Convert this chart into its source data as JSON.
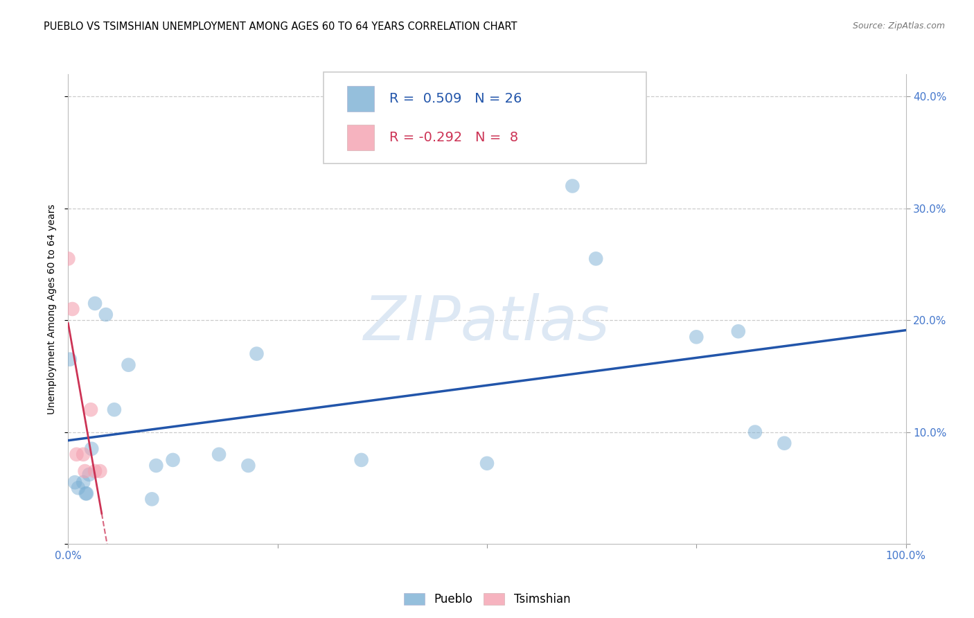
{
  "title": "PUEBLO VS TSIMSHIAN UNEMPLOYMENT AMONG AGES 60 TO 64 YEARS CORRELATION CHART",
  "source": "Source: ZipAtlas.com",
  "ylabel_label": "Unemployment Among Ages 60 to 64 years",
  "xlim": [
    0.0,
    1.0
  ],
  "ylim": [
    0.0,
    0.42
  ],
  "xticks": [
    0.0,
    0.25,
    0.5,
    0.75,
    1.0
  ],
  "xtick_labels": [
    "0.0%",
    "",
    "",
    "",
    "100.0%"
  ],
  "yticks": [
    0.0,
    0.1,
    0.2,
    0.3,
    0.4
  ],
  "ytick_labels": [
    "",
    "10.0%",
    "20.0%",
    "30.0%",
    "40.0%"
  ],
  "pueblo_R": "0.509",
  "pueblo_N": "26",
  "tsimshian_R": "-0.292",
  "tsimshian_N": "8",
  "pueblo_scatter_color": "#7bafd4",
  "tsimshian_scatter_color": "#f4a0b0",
  "pueblo_line_color": "#2255aa",
  "tsimshian_line_color": "#cc3355",
  "tick_color": "#4477cc",
  "background_color": "#ffffff",
  "grid_color": "#cccccc",
  "pueblo_x": [
    0.002,
    0.008,
    0.012,
    0.018,
    0.021,
    0.022,
    0.025,
    0.028,
    0.032,
    0.045,
    0.055,
    0.072,
    0.1,
    0.105,
    0.125,
    0.18,
    0.215,
    0.225,
    0.35,
    0.5,
    0.602,
    0.63,
    0.75,
    0.8,
    0.82,
    0.855
  ],
  "pueblo_y": [
    0.165,
    0.055,
    0.05,
    0.055,
    0.045,
    0.045,
    0.062,
    0.085,
    0.215,
    0.205,
    0.12,
    0.16,
    0.04,
    0.07,
    0.075,
    0.08,
    0.07,
    0.17,
    0.075,
    0.072,
    0.32,
    0.255,
    0.185,
    0.19,
    0.1,
    0.09
  ],
  "tsimshian_x": [
    0.0,
    0.005,
    0.01,
    0.018,
    0.02,
    0.027,
    0.032,
    0.038
  ],
  "tsimshian_y": [
    0.255,
    0.21,
    0.08,
    0.08,
    0.065,
    0.12,
    0.065,
    0.065
  ],
  "title_fontsize": 10.5,
  "axis_label_fontsize": 10,
  "tick_fontsize": 11,
  "legend_fontsize": 14,
  "watermark": "ZIPatlas",
  "watermark_color": "#dde8f4",
  "watermark_fontsize": 64
}
